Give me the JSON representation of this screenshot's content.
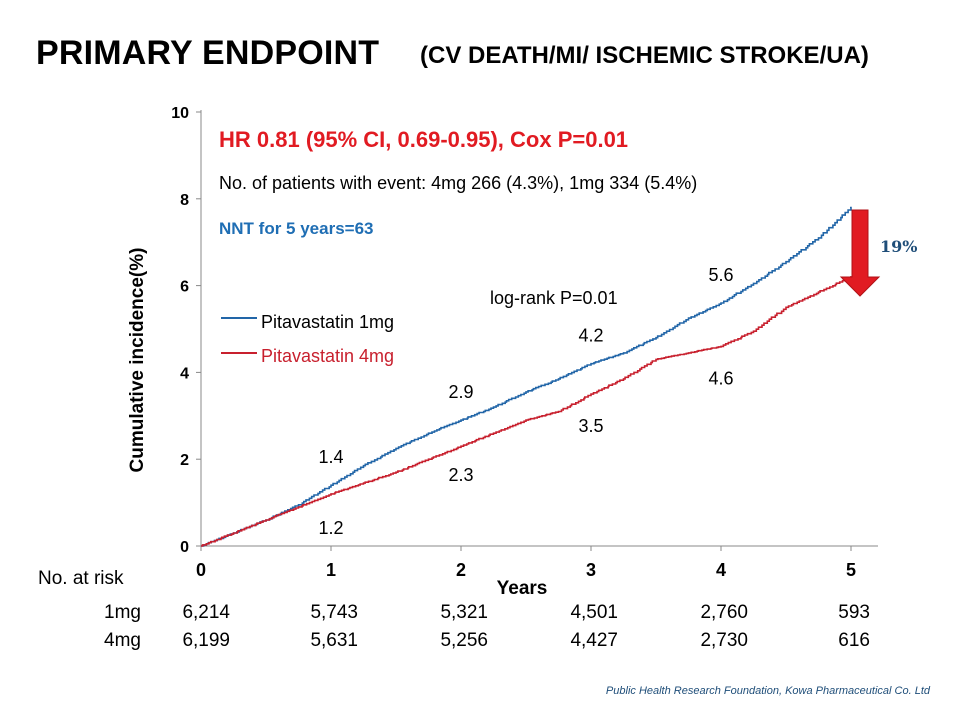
{
  "title": {
    "main": "PRIMARY ENDPOINT",
    "sub": "(CV DEATH/MI/ ISCHEMIC STROKE/UA)"
  },
  "colors": {
    "pitavastatin_1mg": "#2266a8",
    "pitavastatin_4mg": "#c8202e",
    "hr_text": "#e11b22",
    "nnt_text": "#1f6eb4",
    "arrow": "#e11b22",
    "reduction_text": "#1f4e79"
  },
  "chart_data": {
    "type": "line",
    "xlabel": "Years",
    "ylabel": "Cumulative incidence(%)",
    "xlim": [
      0,
      5
    ],
    "ylim": [
      0,
      10
    ],
    "x_ticks": [
      0,
      1,
      2,
      3,
      4,
      5
    ],
    "y_ticks": [
      0,
      2,
      4,
      6,
      8,
      10
    ],
    "grid": false,
    "legend_position": "upper-left",
    "series": [
      {
        "name": "Pitavastatin 1mg",
        "x": [
          0,
          0.25,
          0.5,
          0.75,
          1,
          1.25,
          1.5,
          1.75,
          2,
          2.25,
          2.5,
          2.75,
          3,
          3.25,
          3.5,
          3.75,
          4,
          4.25,
          4.5,
          4.75,
          5
        ],
        "y": [
          0,
          0.3,
          0.6,
          0.95,
          1.4,
          1.85,
          2.25,
          2.6,
          2.9,
          3.2,
          3.55,
          3.85,
          4.2,
          4.45,
          4.8,
          5.25,
          5.6,
          6.05,
          6.55,
          7.1,
          7.8
        ],
        "point_labels": [
          {
            "x": 1,
            "y": 1.4,
            "text": "1.4"
          },
          {
            "x": 2,
            "y": 2.9,
            "text": "2.9"
          },
          {
            "x": 3,
            "y": 4.2,
            "text": "4.2"
          },
          {
            "x": 4,
            "y": 5.6,
            "text": "5.6"
          }
        ]
      },
      {
        "name": "Pitavastatin 4mg",
        "x": [
          0,
          0.25,
          0.5,
          0.75,
          1,
          1.25,
          1.5,
          1.75,
          2,
          2.25,
          2.5,
          2.75,
          3,
          3.25,
          3.5,
          3.75,
          4,
          4.25,
          4.5,
          4.75,
          5
        ],
        "y": [
          0,
          0.3,
          0.6,
          0.9,
          1.2,
          1.45,
          1.7,
          2.0,
          2.3,
          2.6,
          2.9,
          3.1,
          3.5,
          3.85,
          4.3,
          4.45,
          4.6,
          4.95,
          5.5,
          5.85,
          6.2
        ],
        "point_labels": [
          {
            "x": 1,
            "y": 1.2,
            "text": "1.2"
          },
          {
            "x": 2,
            "y": 2.3,
            "text": "2.3"
          },
          {
            "x": 3,
            "y": 3.5,
            "text": "3.5"
          },
          {
            "x": 4,
            "y": 4.6,
            "text": "4.6"
          }
        ]
      }
    ],
    "annotations": {
      "hr": "HR 0.81 (95% CI, 0.69-0.95), Cox P=0.01",
      "events": "No. of patients with event: 4mg 266 (4.3%), 1mg 334 (5.4%)",
      "nnt": "NNT for 5 years=63",
      "logrank": "log-rank P=0.01",
      "reduction": "19%"
    }
  },
  "risk_table": {
    "header": "No. at risk",
    "rows": [
      {
        "label": "1mg",
        "values": [
          "6,214",
          "5,743",
          "5,321",
          "4,501",
          "2,760",
          "593"
        ]
      },
      {
        "label": "4mg",
        "values": [
          "6,199",
          "5,631",
          "5,256",
          "4,427",
          "2,730",
          "616"
        ]
      }
    ]
  },
  "footer": "Public Health Research Foundation, Kowa Pharmaceutical Co. Ltd"
}
